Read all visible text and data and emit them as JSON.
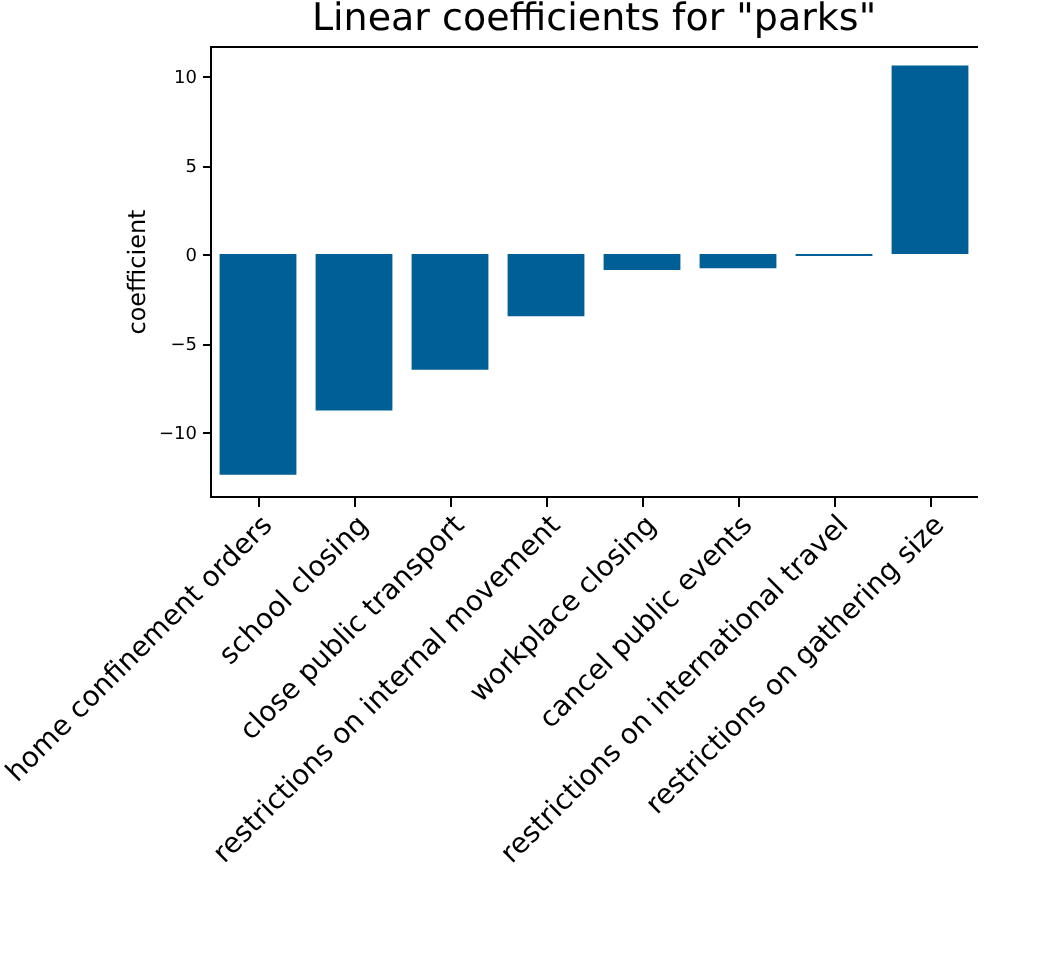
{
  "chart_data": {
    "type": "bar",
    "title": "Linear coefficients for \"parks\"",
    "ylabel": "coefficient",
    "categories": [
      "home confinement orders",
      "school closing",
      "close public transport",
      "restrictions on internal movement",
      "workplace closing",
      "cancel public events",
      "restrictions on international travel",
      "restrictions on gathering size"
    ],
    "values": [
      -12.4,
      -8.8,
      -6.5,
      -3.5,
      -0.9,
      -0.8,
      -0.1,
      10.6
    ],
    "color": "#005f96",
    "ylim": [
      -13.6,
      11.7
    ],
    "yticks": [
      -10,
      -5,
      0,
      5,
      10
    ],
    "grid": false
  }
}
